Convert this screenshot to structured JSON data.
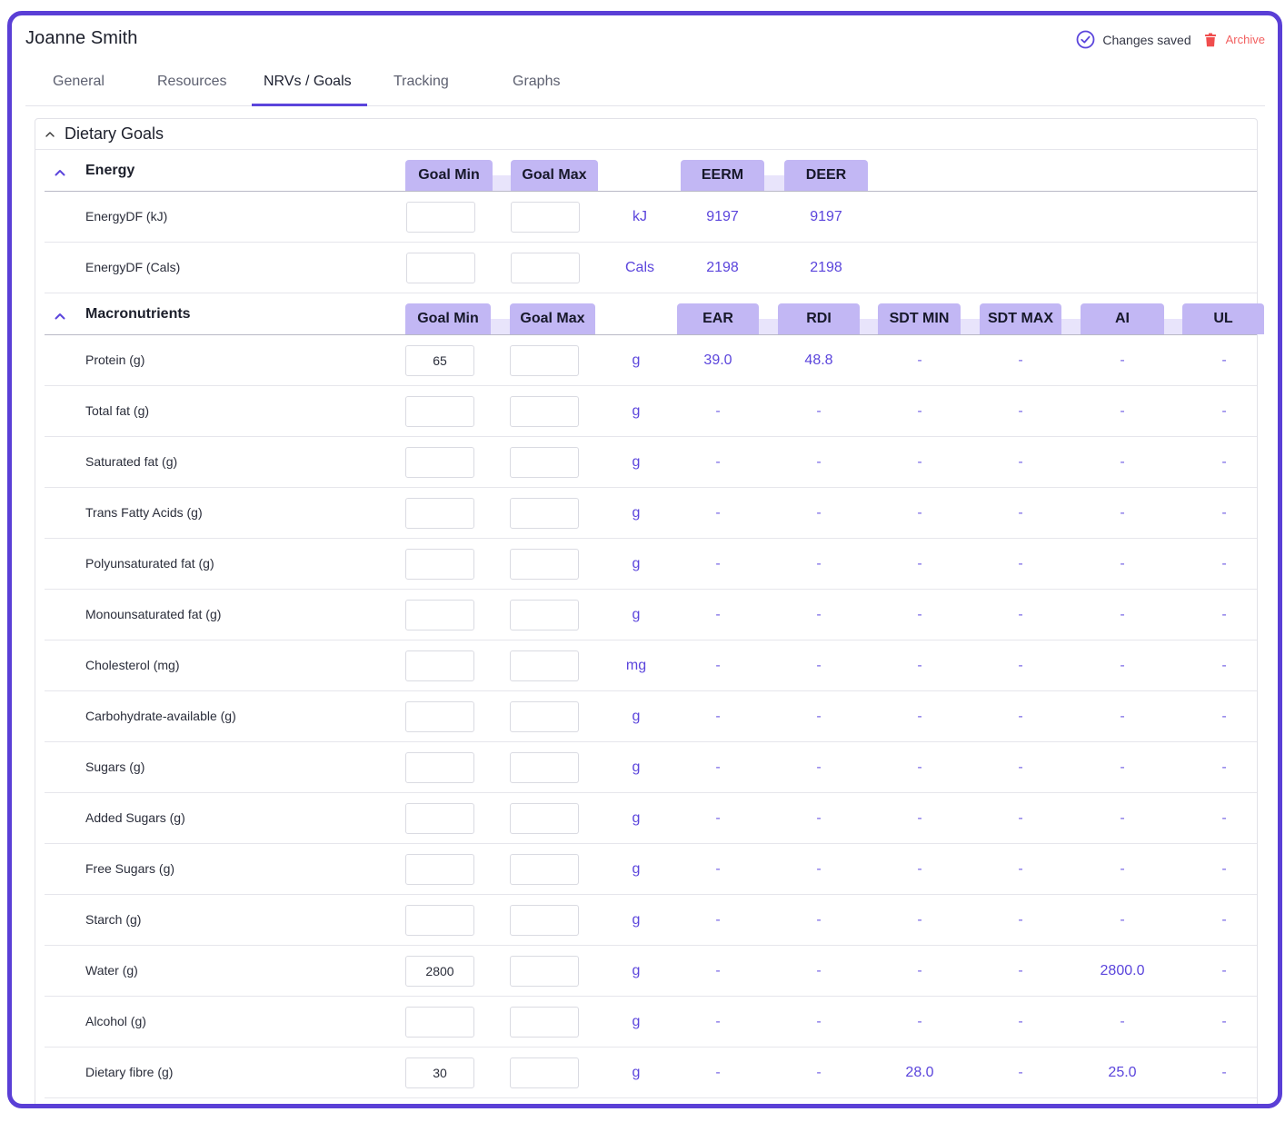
{
  "header": {
    "patient_name": "Joanne Smith",
    "status_text": "Changes saved",
    "archive_label": "Archive"
  },
  "colors": {
    "accent": "#5b45dc",
    "header_cell": "#c2b7f4",
    "archive": "#f26060",
    "frame": "#5a3fd6"
  },
  "tabs": [
    {
      "label": "General"
    },
    {
      "label": "Resources"
    },
    {
      "label": "NRVs / Goals",
      "active": true
    },
    {
      "label": "Tracking"
    },
    {
      "label": "Graphs"
    }
  ],
  "panel": {
    "title": "Dietary Goals"
  },
  "energy": {
    "title": "Energy",
    "columns": [
      "Goal Min",
      "Goal Max",
      "EERM",
      "DEER"
    ],
    "rows": [
      {
        "label": "EnergyDF (kJ)",
        "min": "",
        "max": "",
        "unit": "kJ",
        "values": [
          "9197",
          "9197"
        ]
      },
      {
        "label": "EnergyDF (Cals)",
        "min": "",
        "max": "",
        "unit": "Cals",
        "values": [
          "2198",
          "2198"
        ]
      }
    ]
  },
  "macros": {
    "title": "Macronutrients",
    "columns": [
      "Goal Min",
      "Goal Max",
      "EAR",
      "RDI",
      "SDT MIN",
      "SDT MAX",
      "AI",
      "UL"
    ],
    "rows": [
      {
        "label": "Protein (g)",
        "min": "65",
        "max": "",
        "unit": "g",
        "values": [
          "39.0",
          "48.8",
          "-",
          "-",
          "-",
          "-"
        ]
      },
      {
        "label": "Total fat (g)",
        "min": "",
        "max": "",
        "unit": "g",
        "values": [
          "-",
          "-",
          "-",
          "-",
          "-",
          "-"
        ]
      },
      {
        "label": "Saturated fat (g)",
        "min": "",
        "max": "",
        "unit": "g",
        "values": [
          "-",
          "-",
          "-",
          "-",
          "-",
          "-"
        ]
      },
      {
        "label": "Trans Fatty Acids (g)",
        "min": "",
        "max": "",
        "unit": "g",
        "values": [
          "-",
          "-",
          "-",
          "-",
          "-",
          "-"
        ]
      },
      {
        "label": "Polyunsaturated fat (g)",
        "min": "",
        "max": "",
        "unit": "g",
        "values": [
          "-",
          "-",
          "-",
          "-",
          "-",
          "-"
        ]
      },
      {
        "label": "Monounsaturated fat (g)",
        "min": "",
        "max": "",
        "unit": "g",
        "values": [
          "-",
          "-",
          "-",
          "-",
          "-",
          "-"
        ]
      },
      {
        "label": "Cholesterol (mg)",
        "min": "",
        "max": "",
        "unit": "mg",
        "values": [
          "-",
          "-",
          "-",
          "-",
          "-",
          "-"
        ]
      },
      {
        "label": "Carbohydrate-available (g)",
        "min": "",
        "max": "",
        "unit": "g",
        "values": [
          "-",
          "-",
          "-",
          "-",
          "-",
          "-"
        ]
      },
      {
        "label": "Sugars (g)",
        "min": "",
        "max": "",
        "unit": "g",
        "values": [
          "-",
          "-",
          "-",
          "-",
          "-",
          "-"
        ]
      },
      {
        "label": "Added Sugars (g)",
        "min": "",
        "max": "",
        "unit": "g",
        "values": [
          "-",
          "-",
          "-",
          "-",
          "-",
          "-"
        ]
      },
      {
        "label": "Free Sugars (g)",
        "min": "",
        "max": "",
        "unit": "g",
        "values": [
          "-",
          "-",
          "-",
          "-",
          "-",
          "-"
        ]
      },
      {
        "label": "Starch (g)",
        "min": "",
        "max": "",
        "unit": "g",
        "values": [
          "-",
          "-",
          "-",
          "-",
          "-",
          "-"
        ]
      },
      {
        "label": "Water (g)",
        "min": "2800",
        "max": "",
        "unit": "g",
        "values": [
          "-",
          "-",
          "-",
          "-",
          "2800.0",
          "-"
        ]
      },
      {
        "label": "Alcohol (g)",
        "min": "",
        "max": "",
        "unit": "g",
        "values": [
          "-",
          "-",
          "-",
          "-",
          "-",
          "-"
        ]
      },
      {
        "label": "Dietary fibre (g)",
        "min": "30",
        "max": "",
        "unit": "g",
        "values": [
          "-",
          "-",
          "28.0",
          "-",
          "25.0",
          "-"
        ]
      }
    ]
  }
}
